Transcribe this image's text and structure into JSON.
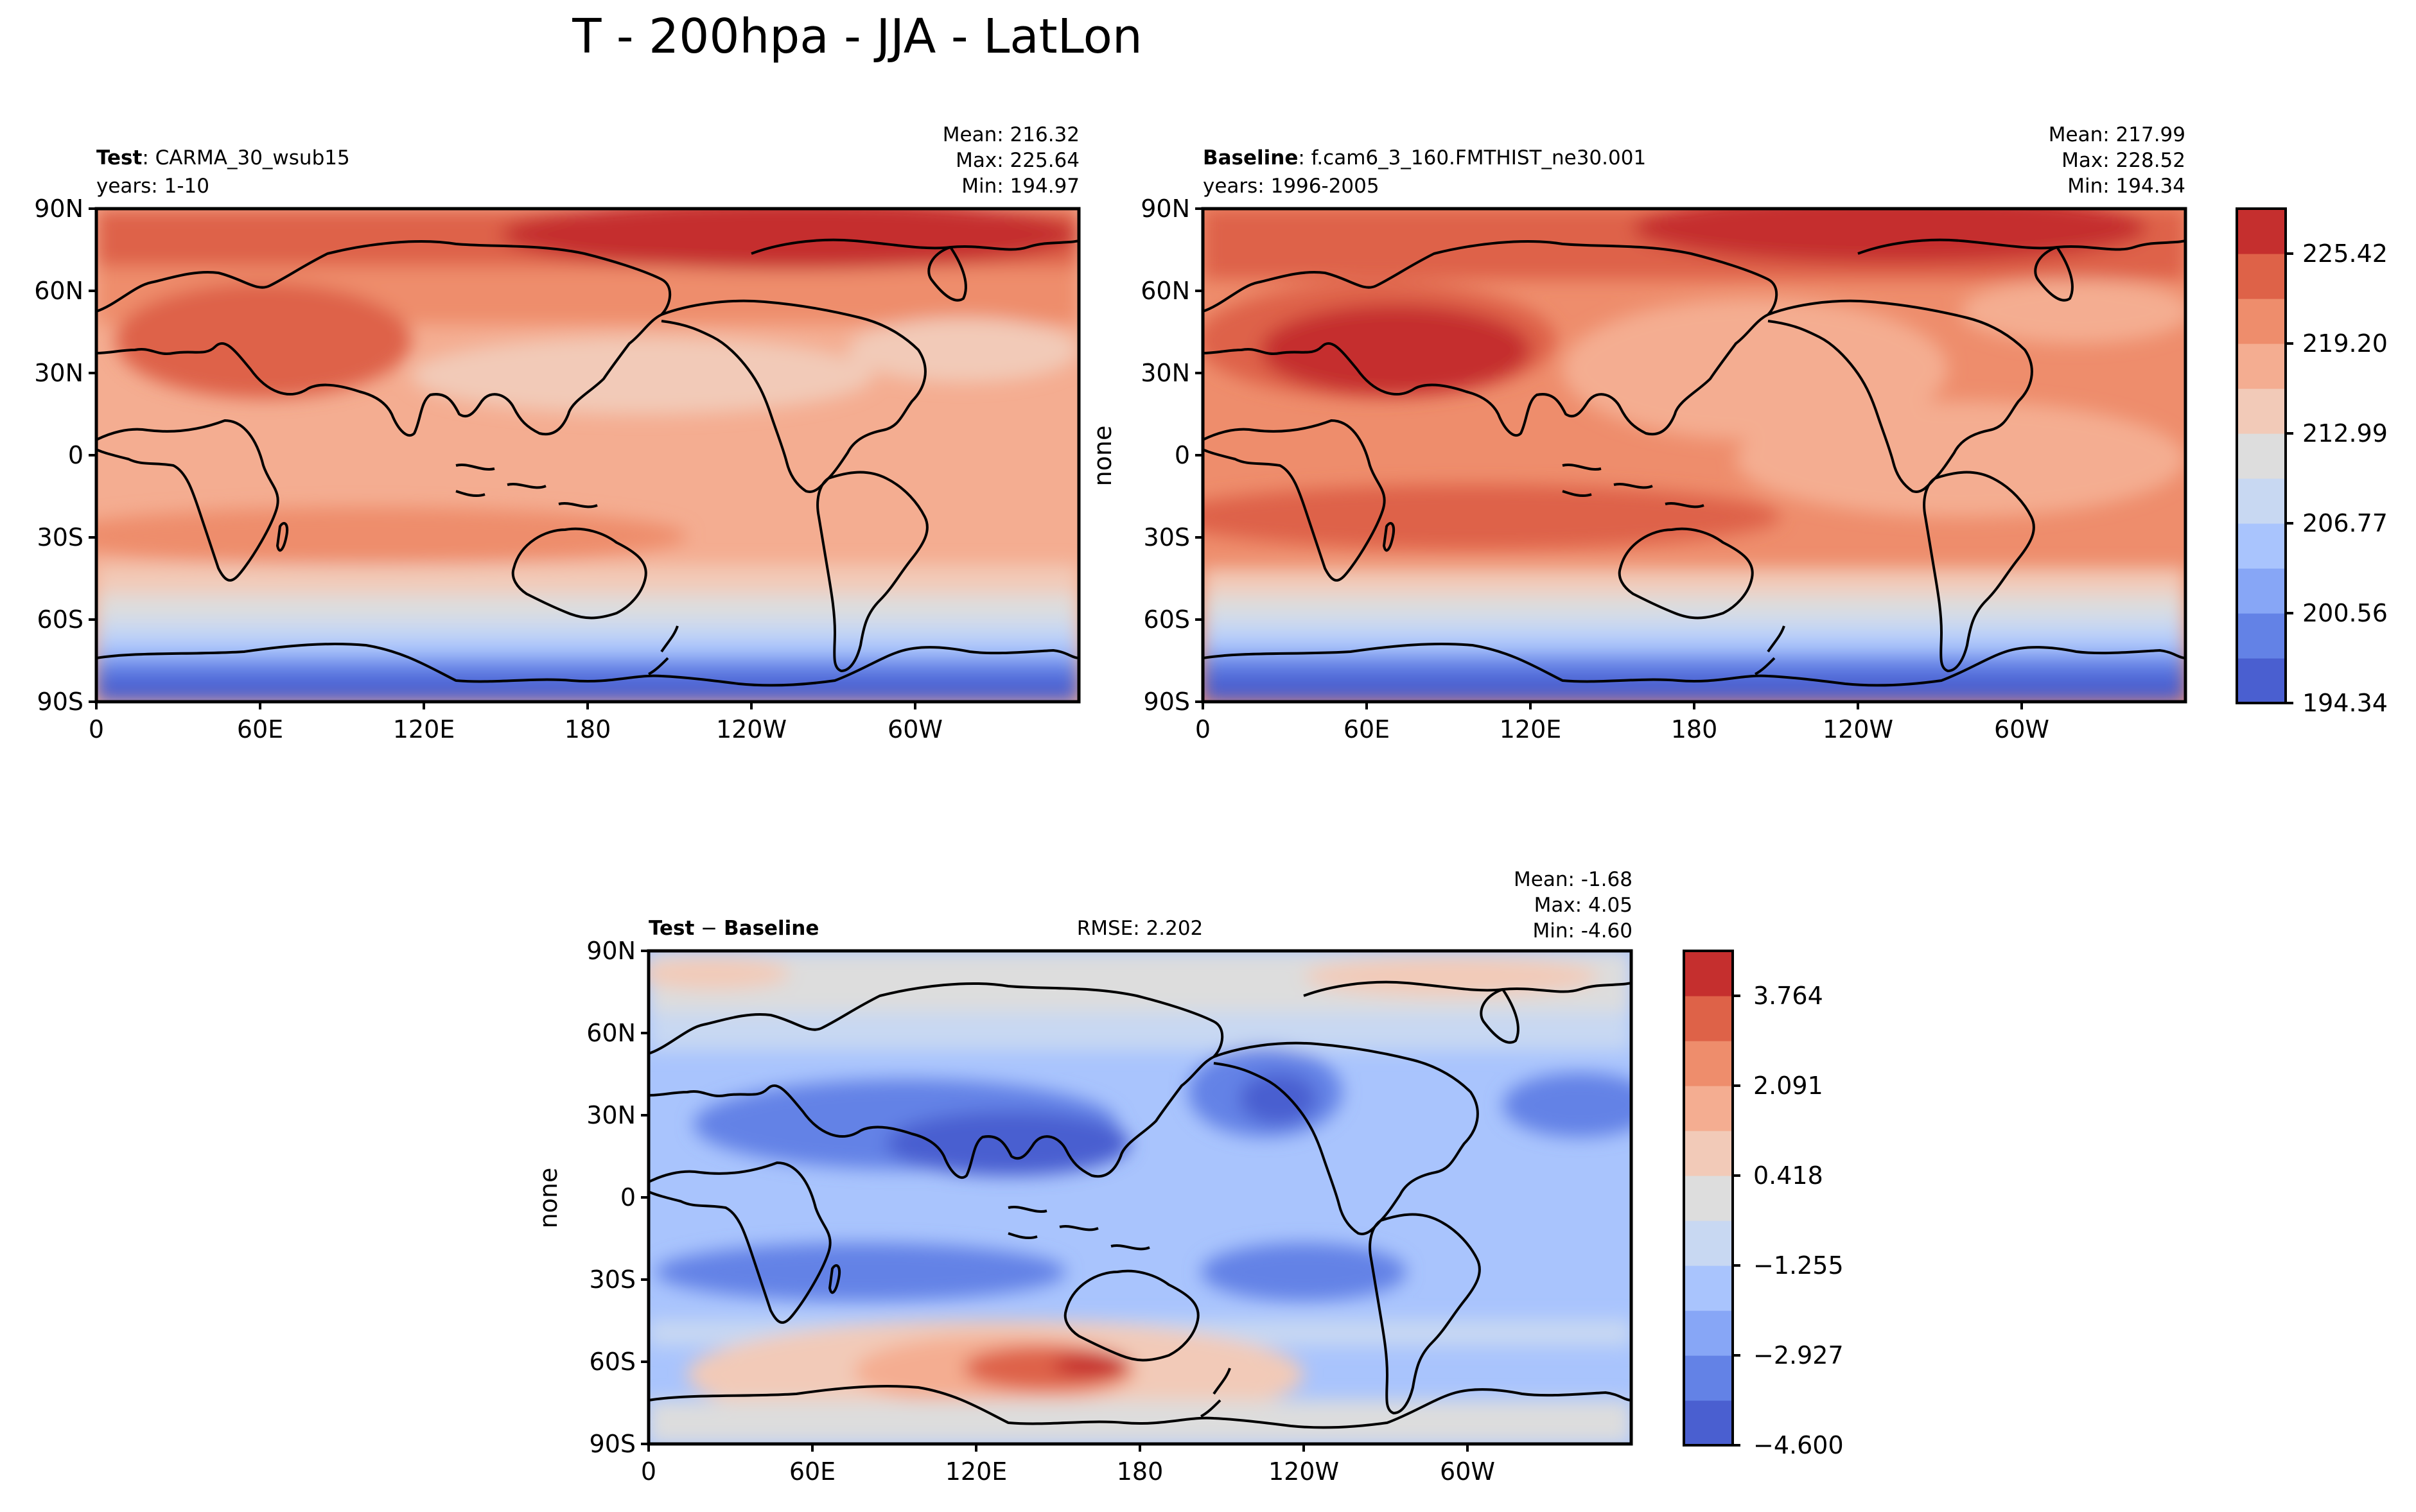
{
  "figure": {
    "title": "T - 200hpa - JJA - LatLon"
  },
  "panels": {
    "test": {
      "name_bold": "Test",
      "name_rest": ": CARMA_30_wsub15",
      "years": "years: 1-10",
      "mean": "Mean: 216.32",
      "max": "Max: 225.64",
      "min": "Min: 194.97",
      "ylabel": ""
    },
    "baseline": {
      "name_bold": "Baseline",
      "name_rest": ": f.cam6_3_160.FMTHIST_ne30.001",
      "years": "years: 1996-2005",
      "mean": "Mean: 217.99",
      "max": "Max: 228.52",
      "min": "Min: 194.34",
      "ylabel": "none"
    },
    "diff": {
      "name_bold": "Test",
      "name_mid": " − ",
      "name_bold2": "Baseline",
      "rmse": "RMSE: 2.202",
      "mean": "Mean: -1.68",
      "max": "Max:  4.05",
      "min": "Min: -4.60",
      "ylabel": "none"
    }
  },
  "axes": {
    "lat_ticks": [
      "90N",
      "60N",
      "30N",
      "0",
      "30S",
      "60S",
      "90S"
    ],
    "lon_ticks": [
      "0",
      "60E",
      "120E",
      "180",
      "120W",
      "60W"
    ]
  },
  "colorbars": {
    "abs": {
      "tick_labels": [
        "225.42",
        "219.20",
        "212.99",
        "206.77",
        "200.56",
        "194.34"
      ],
      "colors": [
        "#4a5fd0",
        "#6382e6",
        "#87a6f6",
        "#a9c4fd",
        "#c8d8f2",
        "#dddddd",
        "#f2cab8",
        "#f4ad91",
        "#ee8d6c",
        "#de6248",
        "#c52f2e"
      ]
    },
    "diff": {
      "tick_labels": [
        "3.764",
        "2.091",
        "0.418",
        "−1.255",
        "−2.927",
        "−4.600"
      ],
      "colors": [
        "#4a5fd0",
        "#6382e6",
        "#87a6f6",
        "#a9c4fd",
        "#c8d8f2",
        "#dddddd",
        "#f2cab8",
        "#f4ad91",
        "#ee8d6c",
        "#de6248",
        "#c52f2e"
      ]
    }
  }
}
